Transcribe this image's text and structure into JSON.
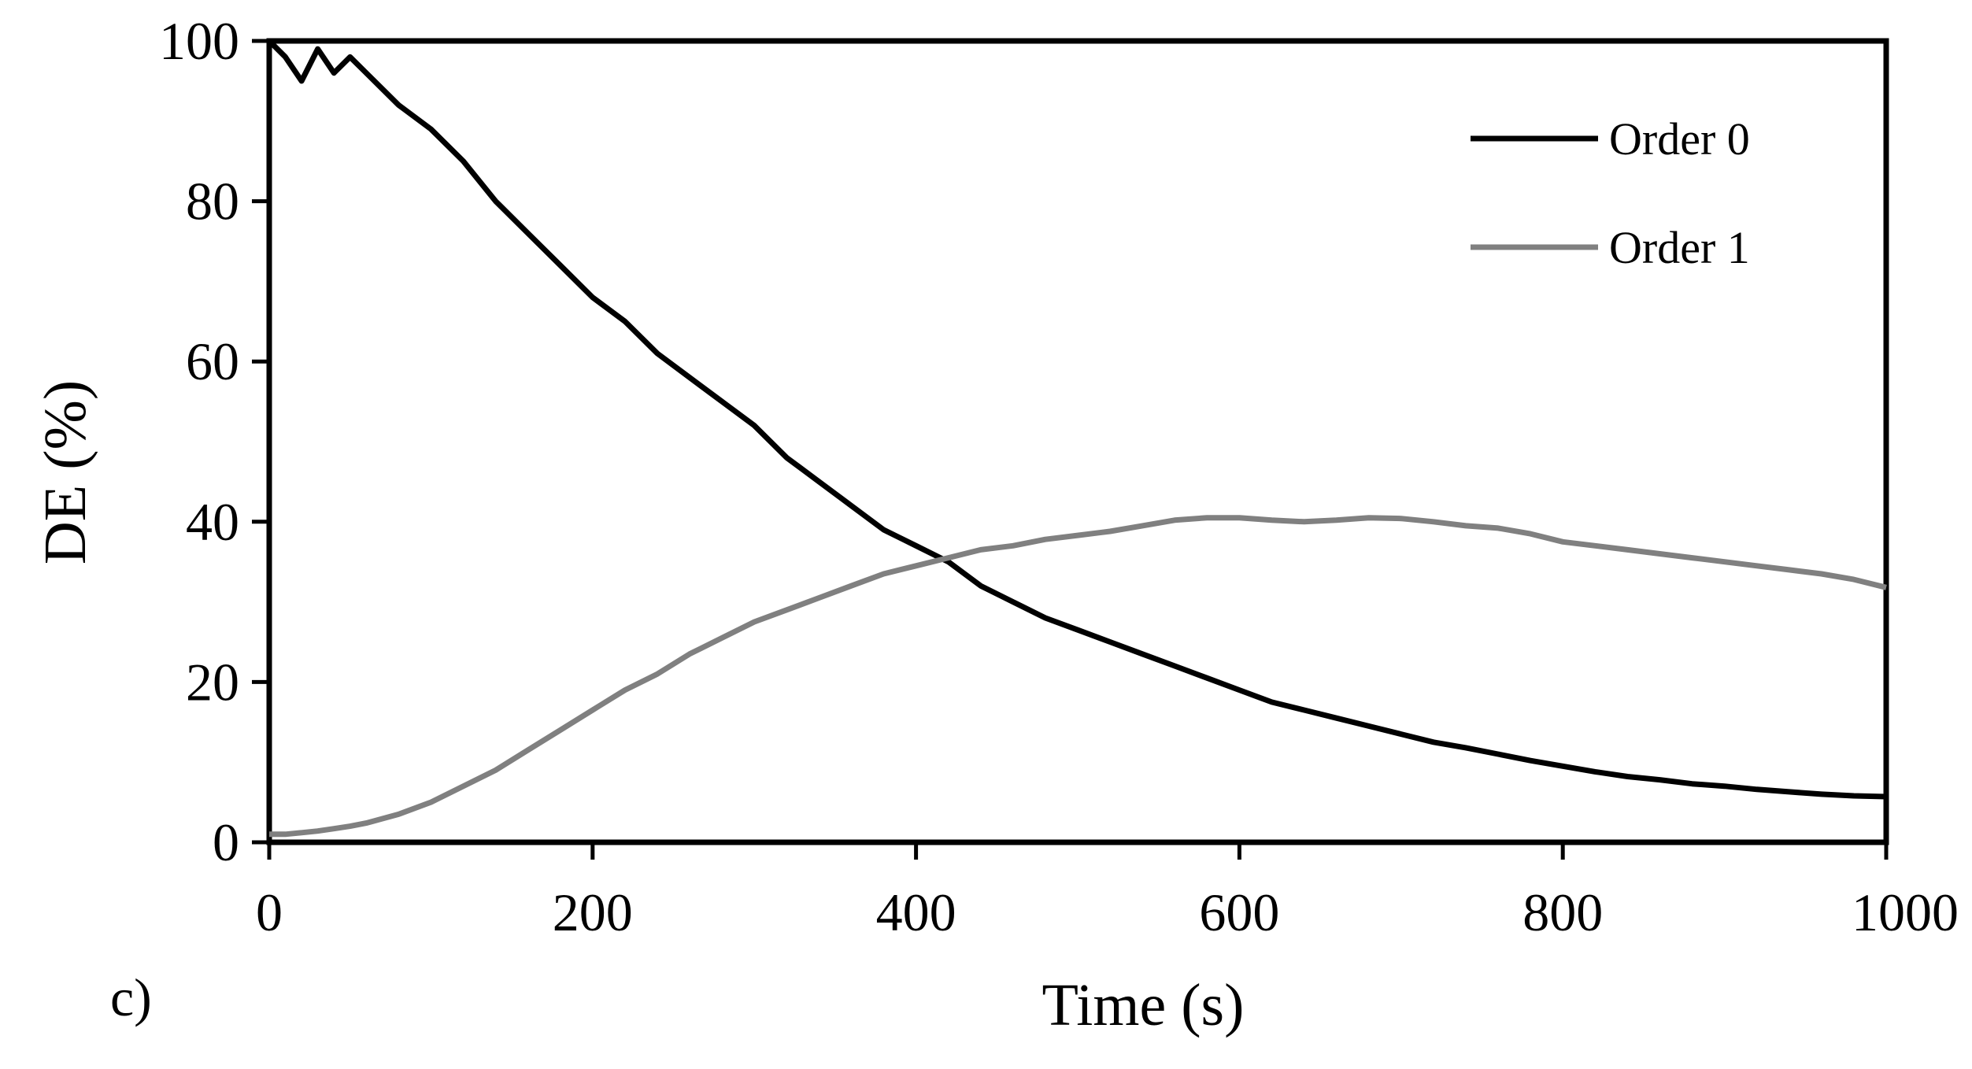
{
  "chart_data": {
    "type": "line",
    "title": "",
    "panel_label": "c)",
    "xlabel": "Time (s)",
    "ylabel": "DE (%)",
    "xlim": [
      0,
      1000
    ],
    "ylim": [
      0,
      100
    ],
    "xticks": [
      0,
      200,
      400,
      600,
      800,
      1000
    ],
    "yticks": [
      0,
      20,
      40,
      60,
      80,
      100
    ],
    "xtick_labels": [
      "0",
      "200",
      "400",
      "600",
      "800",
      "1000"
    ],
    "ytick_labels": [
      "0",
      "20",
      "40",
      "60",
      "80",
      "100"
    ],
    "grid": false,
    "legend_position": "top-right",
    "x": [
      0,
      10,
      20,
      30,
      40,
      50,
      60,
      80,
      100,
      120,
      140,
      160,
      180,
      200,
      220,
      240,
      260,
      280,
      300,
      320,
      340,
      360,
      380,
      400,
      420,
      440,
      460,
      480,
      500,
      520,
      540,
      560,
      580,
      600,
      620,
      640,
      660,
      680,
      700,
      720,
      740,
      760,
      780,
      800,
      820,
      840,
      860,
      880,
      900,
      920,
      940,
      960,
      980,
      1000
    ],
    "series": [
      {
        "name": "Order 0",
        "color": "#000000",
        "values": [
          100,
          98,
          95,
          99,
          96,
          98,
          96,
          92,
          89,
          85,
          80,
          76,
          72,
          68,
          65,
          61,
          58,
          55,
          52,
          48,
          45,
          42,
          39,
          37,
          35,
          32,
          30,
          28,
          26.5,
          25,
          23.5,
          22,
          20.5,
          19,
          17.5,
          16.5,
          15.5,
          14.5,
          13.5,
          12.5,
          11.8,
          11,
          10.2,
          9.5,
          8.8,
          8.2,
          7.8,
          7.3,
          7,
          6.6,
          6.3,
          6,
          5.8,
          5.7
        ]
      },
      {
        "name": "Order 1",
        "color": "#808080",
        "values": [
          1,
          1,
          1.2,
          1.4,
          1.7,
          2,
          2.4,
          3.5,
          5,
          7,
          9,
          11.5,
          14,
          16.5,
          19,
          21,
          23.5,
          25.5,
          27.5,
          29,
          30.5,
          32,
          33.5,
          34.5,
          35.5,
          36.5,
          37,
          37.8,
          38.3,
          38.8,
          39.5,
          40.2,
          40.5,
          40.5,
          40.2,
          40,
          40.2,
          40.5,
          40.4,
          40,
          39.5,
          39.2,
          38.5,
          37.5,
          37,
          36.5,
          36,
          35.5,
          35,
          34.5,
          34,
          33.5,
          32.8,
          31.8
        ]
      }
    ]
  }
}
